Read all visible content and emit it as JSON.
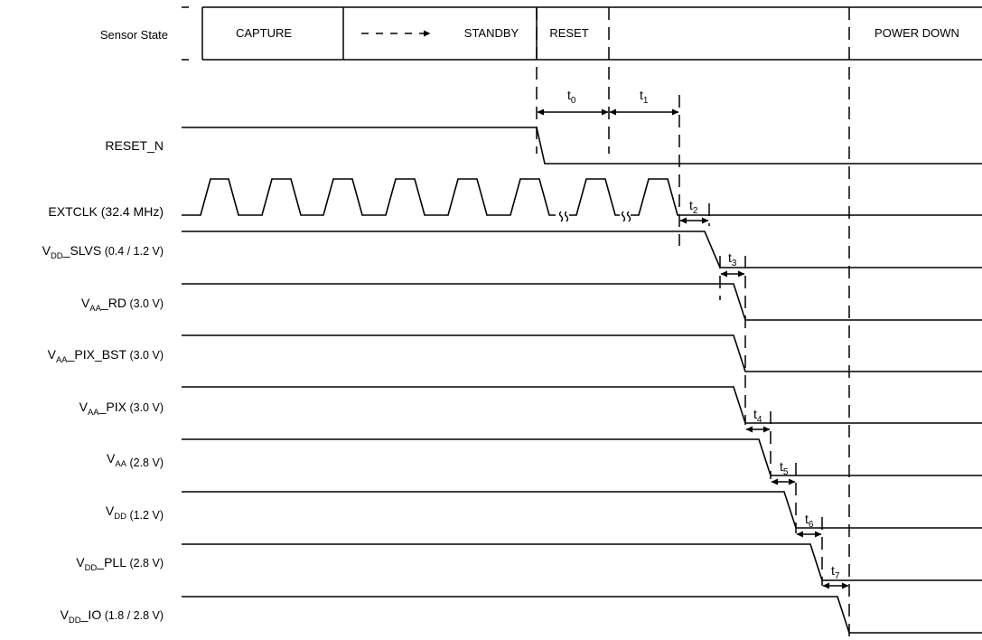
{
  "header": {
    "label": "Sensor State",
    "states": [
      "CAPTURE",
      "STANDBY",
      "RESET",
      "",
      "POWER DOWN"
    ]
  },
  "signals": [
    {
      "name": "RESET_N",
      "main": "RESET_N",
      "sub": "",
      "suffix": "",
      "tail": ""
    },
    {
      "name": "EXTCLK",
      "main": "EXTCLK (32.4 MHz)",
      "sub": "",
      "suffix": "",
      "tail": ""
    },
    {
      "name": "VDD_SLVS",
      "main": "V",
      "sub": "DD",
      "suffix": "_SLVS",
      "tail": " (0.4 / 1.2 V)"
    },
    {
      "name": "VAA_RD",
      "main": "V",
      "sub": "AA",
      "suffix": "_RD",
      "tail": " (3.0 V)"
    },
    {
      "name": "VAA_PIX_BST",
      "main": "V",
      "sub": "AA",
      "suffix": "_PIX_BST",
      "tail": " (3.0 V)"
    },
    {
      "name": "VAA_PIX",
      "main": "V",
      "sub": "AA",
      "suffix": "_PIX",
      "tail": " (3.0 V)"
    },
    {
      "name": "VAA",
      "main": "V",
      "sub": "AA",
      "suffix": "",
      "tail": " (2.8 V)"
    },
    {
      "name": "VDD",
      "main": "V",
      "sub": "DD",
      "suffix": "",
      "tail": " (1.2 V)"
    },
    {
      "name": "VDD_PLL",
      "main": "V",
      "sub": "DD",
      "suffix": "_PLL",
      "tail": " (2.8 V)"
    },
    {
      "name": "VDD_IO",
      "main": "V",
      "sub": "DD",
      "suffix": "_IO",
      "tail": " (1.8 / 2.8 V)"
    }
  ],
  "timings": [
    {
      "base": "t",
      "sub": "0"
    },
    {
      "base": "t",
      "sub": "1"
    },
    {
      "base": "t",
      "sub": "2"
    },
    {
      "base": "t",
      "sub": "3"
    },
    {
      "base": "t",
      "sub": "4"
    },
    {
      "base": "t",
      "sub": "5"
    },
    {
      "base": "t",
      "sub": "6"
    },
    {
      "base": "t",
      "sub": "7"
    }
  ]
}
